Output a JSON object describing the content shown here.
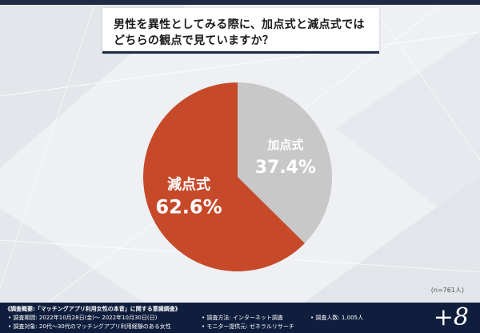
{
  "question": {
    "line1": "男性を異性としてみる際に、加点式と減点式では",
    "line2": "どちらの観点で見ていますか？"
  },
  "chart_data": {
    "type": "pie",
    "slices": [
      {
        "label": "加点式",
        "value": 37.4,
        "display": "37.4%",
        "color": "#c8c8c8"
      },
      {
        "label": "減点式",
        "value": 62.6,
        "display": "62.6%",
        "color": "#c6492a"
      }
    ],
    "note": "(n=761人)"
  },
  "footer": {
    "summary": "《調査概要:「マッチングアプリ利用女性の本音」に関する意識調査》",
    "period": "• 調査期間: 2022年10月28日(金)〜 2022年10月30日(日)",
    "method": "• 調査方法: インターネット調査",
    "count": "• 調査人数: 1,005人",
    "target": "• 調査対象: 20代〜30代のマッチングアプリ利用経験のある女性",
    "provider": "• モニター提供元: ゼネラルリサーチ",
    "brand": "+8"
  }
}
